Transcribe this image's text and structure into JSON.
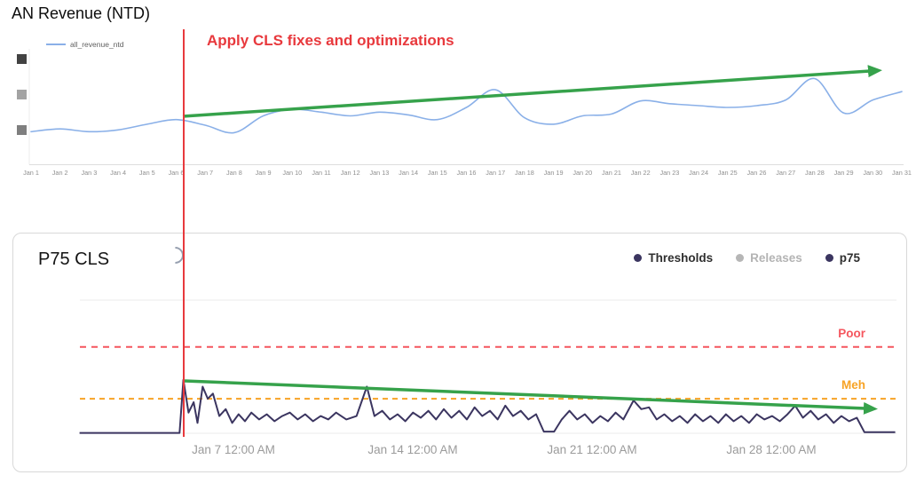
{
  "colors": {
    "revenue_line": "#8ab0e8",
    "annotation_red": "#e8393d",
    "trend_green": "#36a24b",
    "poor_red": "#f5565e",
    "meh_orange": "#f7a325",
    "p75_navy": "#3b3560",
    "releases_gray": "#b6b6b6"
  },
  "revenue_panel": {
    "title": "AN Revenue (NTD)",
    "legend_label": "all_revenue_ntd",
    "annotation": "Apply CLS fixes and optimizations"
  },
  "cls_panel": {
    "title": "P75 CLS",
    "legend": [
      {
        "label": "Thresholds",
        "color": "#3b3560",
        "muted": false
      },
      {
        "label": "Releases",
        "color": "#b6b6b6",
        "muted": true
      },
      {
        "label": "p75",
        "color": "#3b3560",
        "muted": false
      }
    ],
    "threshold_labels": {
      "poor": "Poor",
      "meh": "Meh"
    },
    "x_labels": [
      "Jan 7 12:00 AM",
      "Jan 14 12:00 AM",
      "Jan 21 12:00 AM",
      "Jan 28 12:00 AM"
    ]
  },
  "chart_data": [
    {
      "type": "line",
      "title": "AN Revenue (NTD)",
      "categories": [
        "Jan 1",
        "Jan 2",
        "Jan 3",
        "Jan 4",
        "Jan 5",
        "Jan 6",
        "Jan 7",
        "Jan 8",
        "Jan 9",
        "Jan 10",
        "Jan 11",
        "Jan 12",
        "Jan 13",
        "Jan 14",
        "Jan 15",
        "Jan 16",
        "Jan 17",
        "Jan 18",
        "Jan 19",
        "Jan 20",
        "Jan 21",
        "Jan 22",
        "Jan 23",
        "Jan 24",
        "Jan 25",
        "Jan 26",
        "Jan 27",
        "Jan 28",
        "Jan 29",
        "Jan 30",
        "Jan 31"
      ],
      "series": [
        {
          "name": "all_revenue_ntd",
          "values": [
            33,
            36,
            33,
            35,
            41,
            46,
            40,
            32,
            50,
            57,
            54,
            50,
            54,
            51,
            46,
            59,
            78,
            48,
            41,
            50,
            52,
            66,
            63,
            61,
            59,
            61,
            67,
            90,
            53,
            67,
            76
          ]
        }
      ],
      "ylabel": "redacted",
      "grid": false,
      "legend_position": "top-left",
      "annotations": [
        {
          "type": "vline",
          "x": "Jan 6",
          "label": "Apply CLS fixes and optimizations",
          "color": "#e8393d"
        },
        {
          "type": "trend_arrow",
          "direction": "up",
          "color": "#36a24b"
        }
      ]
    },
    {
      "type": "line",
      "title": "P75 CLS",
      "x_unit": "days_since_jan_1",
      "x_tick_labels": [
        "Jan 7 12:00 AM",
        "Jan 14 12:00 AM",
        "Jan 21 12:00 AM",
        "Jan 28 12:00 AM"
      ],
      "ylim": [
        0,
        0.4
      ],
      "legend": [
        "Thresholds",
        "Releases",
        "p75"
      ],
      "legend_position": "top-right",
      "thresholds": [
        {
          "label": "Poor",
          "value": 0.25,
          "color": "#f5565e"
        },
        {
          "label": "Meh",
          "value": 0.1,
          "color": "#f7a325"
        }
      ],
      "series": [
        {
          "name": "p75",
          "points": [
            [
              0,
              0.001
            ],
            [
              1.5,
              0.001
            ],
            [
              3.0,
              0.001
            ],
            [
              3.9,
              0.001
            ],
            [
              4.05,
              0.155
            ],
            [
              4.25,
              0.06
            ],
            [
              4.45,
              0.09
            ],
            [
              4.6,
              0.03
            ],
            [
              4.8,
              0.135
            ],
            [
              5.0,
              0.1
            ],
            [
              5.2,
              0.115
            ],
            [
              5.45,
              0.05
            ],
            [
              5.7,
              0.07
            ],
            [
              5.95,
              0.03
            ],
            [
              6.2,
              0.055
            ],
            [
              6.45,
              0.035
            ],
            [
              6.7,
              0.06
            ],
            [
              7.0,
              0.04
            ],
            [
              7.3,
              0.055
            ],
            [
              7.6,
              0.035
            ],
            [
              7.9,
              0.05
            ],
            [
              8.2,
              0.06
            ],
            [
              8.5,
              0.04
            ],
            [
              8.8,
              0.055
            ],
            [
              9.1,
              0.035
            ],
            [
              9.4,
              0.05
            ],
            [
              9.7,
              0.04
            ],
            [
              10.0,
              0.06
            ],
            [
              10.4,
              0.04
            ],
            [
              10.8,
              0.05
            ],
            [
              11.2,
              0.135
            ],
            [
              11.5,
              0.05
            ],
            [
              11.8,
              0.065
            ],
            [
              12.1,
              0.04
            ],
            [
              12.4,
              0.055
            ],
            [
              12.7,
              0.035
            ],
            [
              13.0,
              0.06
            ],
            [
              13.3,
              0.045
            ],
            [
              13.6,
              0.065
            ],
            [
              13.9,
              0.04
            ],
            [
              14.2,
              0.07
            ],
            [
              14.5,
              0.045
            ],
            [
              14.8,
              0.065
            ],
            [
              15.1,
              0.04
            ],
            [
              15.4,
              0.075
            ],
            [
              15.7,
              0.05
            ],
            [
              16.0,
              0.065
            ],
            [
              16.3,
              0.04
            ],
            [
              16.6,
              0.08
            ],
            [
              16.9,
              0.05
            ],
            [
              17.2,
              0.065
            ],
            [
              17.5,
              0.04
            ],
            [
              17.8,
              0.055
            ],
            [
              18.1,
              0.005
            ],
            [
              18.5,
              0.005
            ],
            [
              18.8,
              0.04
            ],
            [
              19.1,
              0.065
            ],
            [
              19.4,
              0.04
            ],
            [
              19.7,
              0.055
            ],
            [
              20.0,
              0.03
            ],
            [
              20.3,
              0.05
            ],
            [
              20.6,
              0.035
            ],
            [
              20.9,
              0.06
            ],
            [
              21.2,
              0.04
            ],
            [
              21.6,
              0.095
            ],
            [
              21.9,
              0.07
            ],
            [
              22.2,
              0.075
            ],
            [
              22.5,
              0.04
            ],
            [
              22.8,
              0.055
            ],
            [
              23.1,
              0.035
            ],
            [
              23.4,
              0.05
            ],
            [
              23.7,
              0.03
            ],
            [
              24.0,
              0.055
            ],
            [
              24.3,
              0.035
            ],
            [
              24.6,
              0.05
            ],
            [
              24.9,
              0.03
            ],
            [
              25.2,
              0.055
            ],
            [
              25.5,
              0.035
            ],
            [
              25.8,
              0.05
            ],
            [
              26.1,
              0.03
            ],
            [
              26.4,
              0.055
            ],
            [
              26.7,
              0.04
            ],
            [
              27.0,
              0.05
            ],
            [
              27.3,
              0.035
            ],
            [
              27.6,
              0.055
            ],
            [
              27.9,
              0.08
            ],
            [
              28.2,
              0.045
            ],
            [
              28.5,
              0.065
            ],
            [
              28.8,
              0.04
            ],
            [
              29.1,
              0.055
            ],
            [
              29.4,
              0.03
            ],
            [
              29.7,
              0.05
            ],
            [
              30.0,
              0.035
            ],
            [
              30.3,
              0.045
            ],
            [
              30.6,
              0.003
            ],
            [
              31.2,
              0.003
            ],
            [
              31.8,
              0.003
            ]
          ]
        }
      ],
      "annotations": [
        {
          "type": "trend_arrow",
          "direction": "down",
          "color": "#36a24b"
        },
        {
          "type": "vline_continued",
          "color": "#e8393d"
        }
      ]
    }
  ]
}
